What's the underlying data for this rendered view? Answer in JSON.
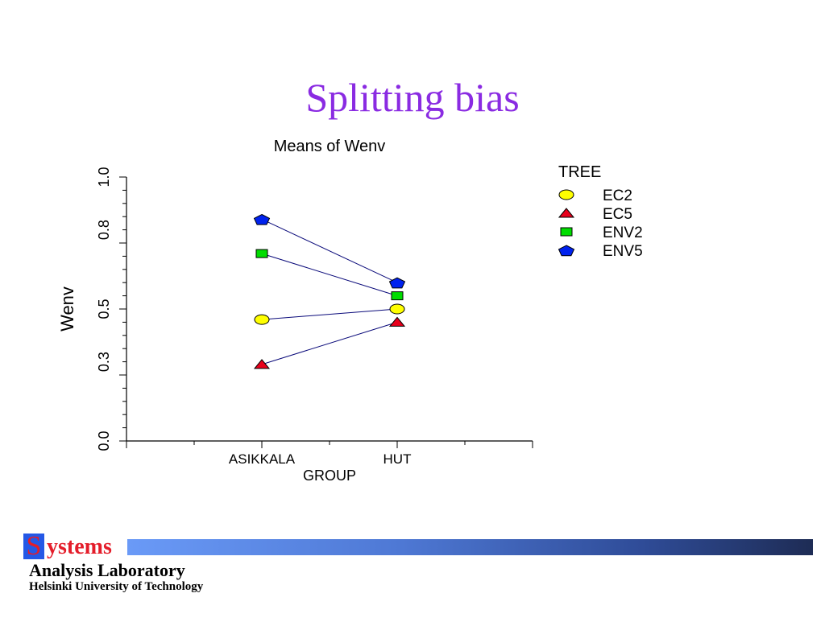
{
  "slide": {
    "title": "Splitting bias"
  },
  "chart_data": {
    "type": "line",
    "title": "Means of Wenv",
    "xlabel": "GROUP",
    "ylabel": "Wenv",
    "categories": [
      "ASIKKALA",
      "HUT"
    ],
    "ylim": [
      0.0,
      1.0
    ],
    "yticks": [
      0.0,
      0.3,
      0.5,
      0.8,
      1.0
    ],
    "ytick_labels": [
      "0.0",
      "0.3",
      "0.5",
      "0.8",
      "1.0"
    ],
    "legend_title": "TREE",
    "legend_position": "top-right",
    "series": [
      {
        "name": "EC2",
        "values": [
          0.46,
          0.5
        ],
        "marker": "circle",
        "color": "#ffff00"
      },
      {
        "name": "EC5",
        "values": [
          0.29,
          0.45
        ],
        "marker": "triangle",
        "color": "#e8001c"
      },
      {
        "name": "ENV2",
        "values": [
          0.71,
          0.55
        ],
        "marker": "square",
        "color": "#00dd00"
      },
      {
        "name": "ENV5",
        "values": [
          0.84,
          0.6
        ],
        "marker": "pentagon",
        "color": "#0022ee"
      }
    ],
    "line_color": "#0a0a7a"
  },
  "footer": {
    "logo_initial": "S",
    "logo_rest": "ystems",
    "line2": "Analysis Laboratory",
    "line3": "Helsinki University of Technology"
  }
}
